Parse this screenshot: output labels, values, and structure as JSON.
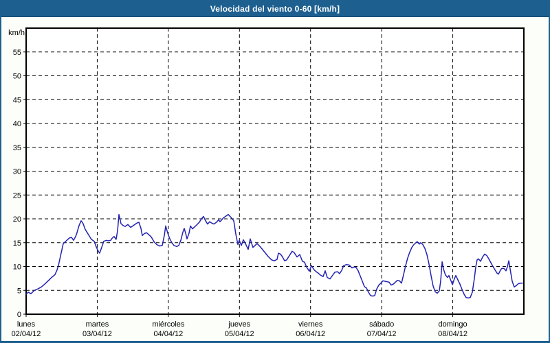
{
  "window": {
    "title": "Velocidad del viento 0-60 [km/h]"
  },
  "colors": {
    "frame": "#1D6090",
    "titlebar_edge": "#10456A",
    "title_text": "#FFFFFF",
    "page_bg": "#FCFEF9",
    "plot_bg": "#FFFFFF",
    "plot_border": "#000000",
    "grid": "#000000",
    "text": "#000000",
    "line": "#2222B2"
  },
  "chart_data": {
    "type": "line",
    "title": "Velocidad del viento 0-60 [km/h]",
    "unit_label": "km/h",
    "ylim": [
      0,
      60
    ],
    "y_ticks": [
      0,
      5,
      10,
      15,
      20,
      25,
      30,
      35,
      40,
      45,
      50,
      55
    ],
    "xlim_days": [
      0,
      7
    ],
    "grid": "dashed",
    "legend": "none",
    "x_days": [
      {
        "name": "lunes",
        "date": "02/04/12"
      },
      {
        "name": "martes",
        "date": "03/04/12"
      },
      {
        "name": "miércoles",
        "date": "04/04/12"
      },
      {
        "name": "jueves",
        "date": "05/04/12"
      },
      {
        "name": "viernes",
        "date": "06/04/12"
      },
      {
        "name": "sábado",
        "date": "07/04/12"
      },
      {
        "name": "domingo",
        "date": "08/04/12"
      }
    ],
    "points": [
      [
        0.0,
        4.2
      ],
      [
        0.029,
        4.6
      ],
      [
        0.068,
        4.3
      ],
      [
        0.116,
        5.0
      ],
      [
        0.164,
        5.3
      ],
      [
        0.213,
        5.7
      ],
      [
        0.261,
        6.3
      ],
      [
        0.309,
        7.0
      ],
      [
        0.358,
        7.7
      ],
      [
        0.406,
        8.3
      ],
      [
        0.435,
        9.3
      ],
      [
        0.454,
        10.2
      ],
      [
        0.483,
        12.2
      ],
      [
        0.503,
        13.5
      ],
      [
        0.522,
        14.8
      ],
      [
        0.551,
        15.2
      ],
      [
        0.58,
        15.6
      ],
      [
        0.609,
        16.0
      ],
      [
        0.638,
        16.1
      ],
      [
        0.667,
        15.5
      ],
      [
        0.696,
        16.3
      ],
      [
        0.715,
        17.1
      ],
      [
        0.744,
        18.6
      ],
      [
        0.773,
        19.6
      ],
      [
        0.802,
        19.0
      ],
      [
        0.831,
        17.8
      ],
      [
        0.86,
        17.1
      ],
      [
        0.889,
        16.4
      ],
      [
        0.918,
        15.7
      ],
      [
        0.957,
        15.3
      ],
      [
        0.986,
        14.1
      ],
      [
        1.015,
        13.2
      ],
      [
        1.034,
        12.8
      ],
      [
        1.063,
        14.0
      ],
      [
        1.092,
        15.3
      ],
      [
        1.131,
        15.5
      ],
      [
        1.16,
        15.4
      ],
      [
        1.189,
        15.5
      ],
      [
        1.208,
        15.9
      ],
      [
        1.237,
        16.3
      ],
      [
        1.266,
        15.7
      ],
      [
        1.286,
        17.5
      ],
      [
        1.305,
        20.9
      ],
      [
        1.334,
        19.0
      ],
      [
        1.363,
        18.6
      ],
      [
        1.392,
        18.4
      ],
      [
        1.431,
        18.8
      ],
      [
        1.47,
        18.2
      ],
      [
        1.518,
        18.7
      ],
      [
        1.557,
        19.1
      ],
      [
        1.586,
        19.3
      ],
      [
        1.615,
        18.0
      ],
      [
        1.634,
        16.5
      ],
      [
        1.663,
        16.9
      ],
      [
        1.692,
        17.1
      ],
      [
        1.731,
        16.6
      ],
      [
        1.76,
        16.2
      ],
      [
        1.798,
        15.2
      ],
      [
        1.837,
        14.6
      ],
      [
        1.876,
        14.3
      ],
      [
        1.914,
        14.4
      ],
      [
        1.943,
        16.5
      ],
      [
        1.963,
        18.5
      ],
      [
        1.992,
        17.0
      ],
      [
        2.021,
        15.8
      ],
      [
        2.05,
        15.0
      ],
      [
        2.079,
        14.4
      ],
      [
        2.117,
        14.2
      ],
      [
        2.146,
        14.4
      ],
      [
        2.175,
        15.5
      ],
      [
        2.204,
        17.2
      ],
      [
        2.224,
        18.0
      ],
      [
        2.243,
        17.0
      ],
      [
        2.262,
        15.8
      ],
      [
        2.291,
        17.0
      ],
      [
        2.311,
        18.5
      ],
      [
        2.34,
        17.9
      ],
      [
        2.369,
        18.3
      ],
      [
        2.398,
        18.7
      ],
      [
        2.436,
        19.3
      ],
      [
        2.465,
        20.0
      ],
      [
        2.494,
        20.5
      ],
      [
        2.523,
        19.6
      ],
      [
        2.552,
        18.9
      ],
      [
        2.581,
        19.4
      ],
      [
        2.611,
        19.1
      ],
      [
        2.64,
        18.9
      ],
      [
        2.678,
        19.3
      ],
      [
        2.707,
        19.8
      ],
      [
        2.727,
        19.4
      ],
      [
        2.775,
        20.2
      ],
      [
        2.814,
        20.6
      ],
      [
        2.843,
        20.9
      ],
      [
        2.881,
        20.3
      ],
      [
        2.92,
        19.6
      ],
      [
        2.949,
        16.8
      ],
      [
        2.978,
        14.6
      ],
      [
        2.997,
        15.5
      ],
      [
        3.026,
        14.4
      ],
      [
        3.055,
        15.6
      ],
      [
        3.084,
        14.8
      ],
      [
        3.123,
        13.6
      ],
      [
        3.152,
        15.8
      ],
      [
        3.19,
        14.0
      ],
      [
        3.219,
        14.4
      ],
      [
        3.248,
        14.8
      ],
      [
        3.277,
        14.4
      ],
      [
        3.306,
        13.9
      ],
      [
        3.355,
        13.0
      ],
      [
        3.403,
        12.1
      ],
      [
        3.452,
        11.4
      ],
      [
        3.49,
        11.2
      ],
      [
        3.529,
        11.5
      ],
      [
        3.548,
        12.8
      ],
      [
        3.577,
        12.6
      ],
      [
        3.606,
        12.0
      ],
      [
        3.635,
        11.2
      ],
      [
        3.664,
        11.4
      ],
      [
        3.703,
        12.3
      ],
      [
        3.741,
        13.2
      ],
      [
        3.77,
        12.9
      ],
      [
        3.809,
        12.0
      ],
      [
        3.848,
        12.5
      ],
      [
        3.886,
        11.1
      ],
      [
        3.915,
        10.9
      ],
      [
        3.944,
        9.9
      ],
      [
        3.983,
        9.0
      ],
      [
        4.012,
        10.2
      ],
      [
        4.051,
        9.3
      ],
      [
        4.08,
        8.9
      ],
      [
        4.109,
        8.6
      ],
      [
        4.138,
        8.2
      ],
      [
        4.177,
        7.9
      ],
      [
        4.206,
        9.1
      ],
      [
        4.235,
        7.7
      ],
      [
        4.273,
        7.4
      ],
      [
        4.312,
        8.2
      ],
      [
        4.341,
        8.8
      ],
      [
        4.38,
        8.9
      ],
      [
        4.409,
        8.5
      ],
      [
        4.438,
        9.2
      ],
      [
        4.467,
        10.2
      ],
      [
        4.505,
        10.4
      ],
      [
        4.544,
        10.3
      ],
      [
        4.583,
        9.7
      ],
      [
        4.612,
        9.9
      ],
      [
        4.641,
        9.8
      ],
      [
        4.67,
        9.1
      ],
      [
        4.699,
        8.0
      ],
      [
        4.728,
        6.9
      ],
      [
        4.757,
        5.8
      ],
      [
        4.786,
        5.5
      ],
      [
        4.815,
        4.6
      ],
      [
        4.844,
        3.9
      ],
      [
        4.873,
        3.8
      ],
      [
        4.902,
        3.9
      ],
      [
        4.931,
        5.3
      ],
      [
        4.96,
        6.1
      ],
      [
        4.989,
        6.5
      ],
      [
        5.018,
        7.0
      ],
      [
        5.047,
        6.9
      ],
      [
        5.076,
        6.8
      ],
      [
        5.105,
        6.7
      ],
      [
        5.134,
        6.1
      ],
      [
        5.163,
        6.3
      ],
      [
        5.192,
        6.7
      ],
      [
        5.221,
        7.1
      ],
      [
        5.25,
        7.0
      ],
      [
        5.279,
        6.5
      ],
      [
        5.308,
        8.3
      ],
      [
        5.337,
        10.2
      ],
      [
        5.366,
        11.8
      ],
      [
        5.395,
        13.0
      ],
      [
        5.424,
        14.0
      ],
      [
        5.453,
        14.6
      ],
      [
        5.482,
        15.0
      ],
      [
        5.501,
        15.2
      ],
      [
        5.53,
        14.7
      ],
      [
        5.55,
        15.0
      ],
      [
        5.579,
        14.6
      ],
      [
        5.608,
        13.8
      ],
      [
        5.637,
        12.5
      ],
      [
        5.666,
        10.5
      ],
      [
        5.695,
        8.1
      ],
      [
        5.724,
        5.9
      ],
      [
        5.753,
        4.7
      ],
      [
        5.782,
        4.4
      ],
      [
        5.811,
        4.9
      ],
      [
        5.83,
        7.0
      ],
      [
        5.85,
        11.0
      ],
      [
        5.869,
        9.5
      ],
      [
        5.898,
        8.2
      ],
      [
        5.927,
        7.7
      ],
      [
        5.946,
        8.1
      ],
      [
        5.975,
        7.0
      ],
      [
        5.995,
        6.2
      ],
      [
        6.024,
        7.5
      ],
      [
        6.043,
        8.1
      ],
      [
        6.072,
        7.2
      ],
      [
        6.101,
        6.3
      ],
      [
        6.13,
        5.2
      ],
      [
        6.159,
        4.2
      ],
      [
        6.188,
        3.5
      ],
      [
        6.217,
        3.4
      ],
      [
        6.246,
        3.5
      ],
      [
        6.275,
        4.6
      ],
      [
        6.304,
        7.5
      ],
      [
        6.324,
        10.0
      ],
      [
        6.343,
        11.4
      ],
      [
        6.362,
        11.6
      ],
      [
        6.391,
        11.1
      ],
      [
        6.42,
        12.0
      ],
      [
        6.449,
        12.6
      ],
      [
        6.478,
        12.3
      ],
      [
        6.507,
        11.6
      ],
      [
        6.536,
        10.8
      ],
      [
        6.565,
        10.0
      ],
      [
        6.594,
        9.3
      ],
      [
        6.623,
        8.6
      ],
      [
        6.643,
        8.4
      ],
      [
        6.672,
        9.3
      ],
      [
        6.691,
        9.6
      ],
      [
        6.72,
        9.6
      ],
      [
        6.749,
        9.1
      ],
      [
        6.769,
        10.0
      ],
      [
        6.788,
        11.2
      ],
      [
        6.807,
        9.5
      ],
      [
        6.836,
        6.9
      ],
      [
        6.865,
        5.7
      ],
      [
        6.894,
        6.0
      ],
      [
        6.923,
        6.4
      ],
      [
        6.952,
        6.5
      ],
      [
        6.981,
        6.5
      ]
    ]
  }
}
